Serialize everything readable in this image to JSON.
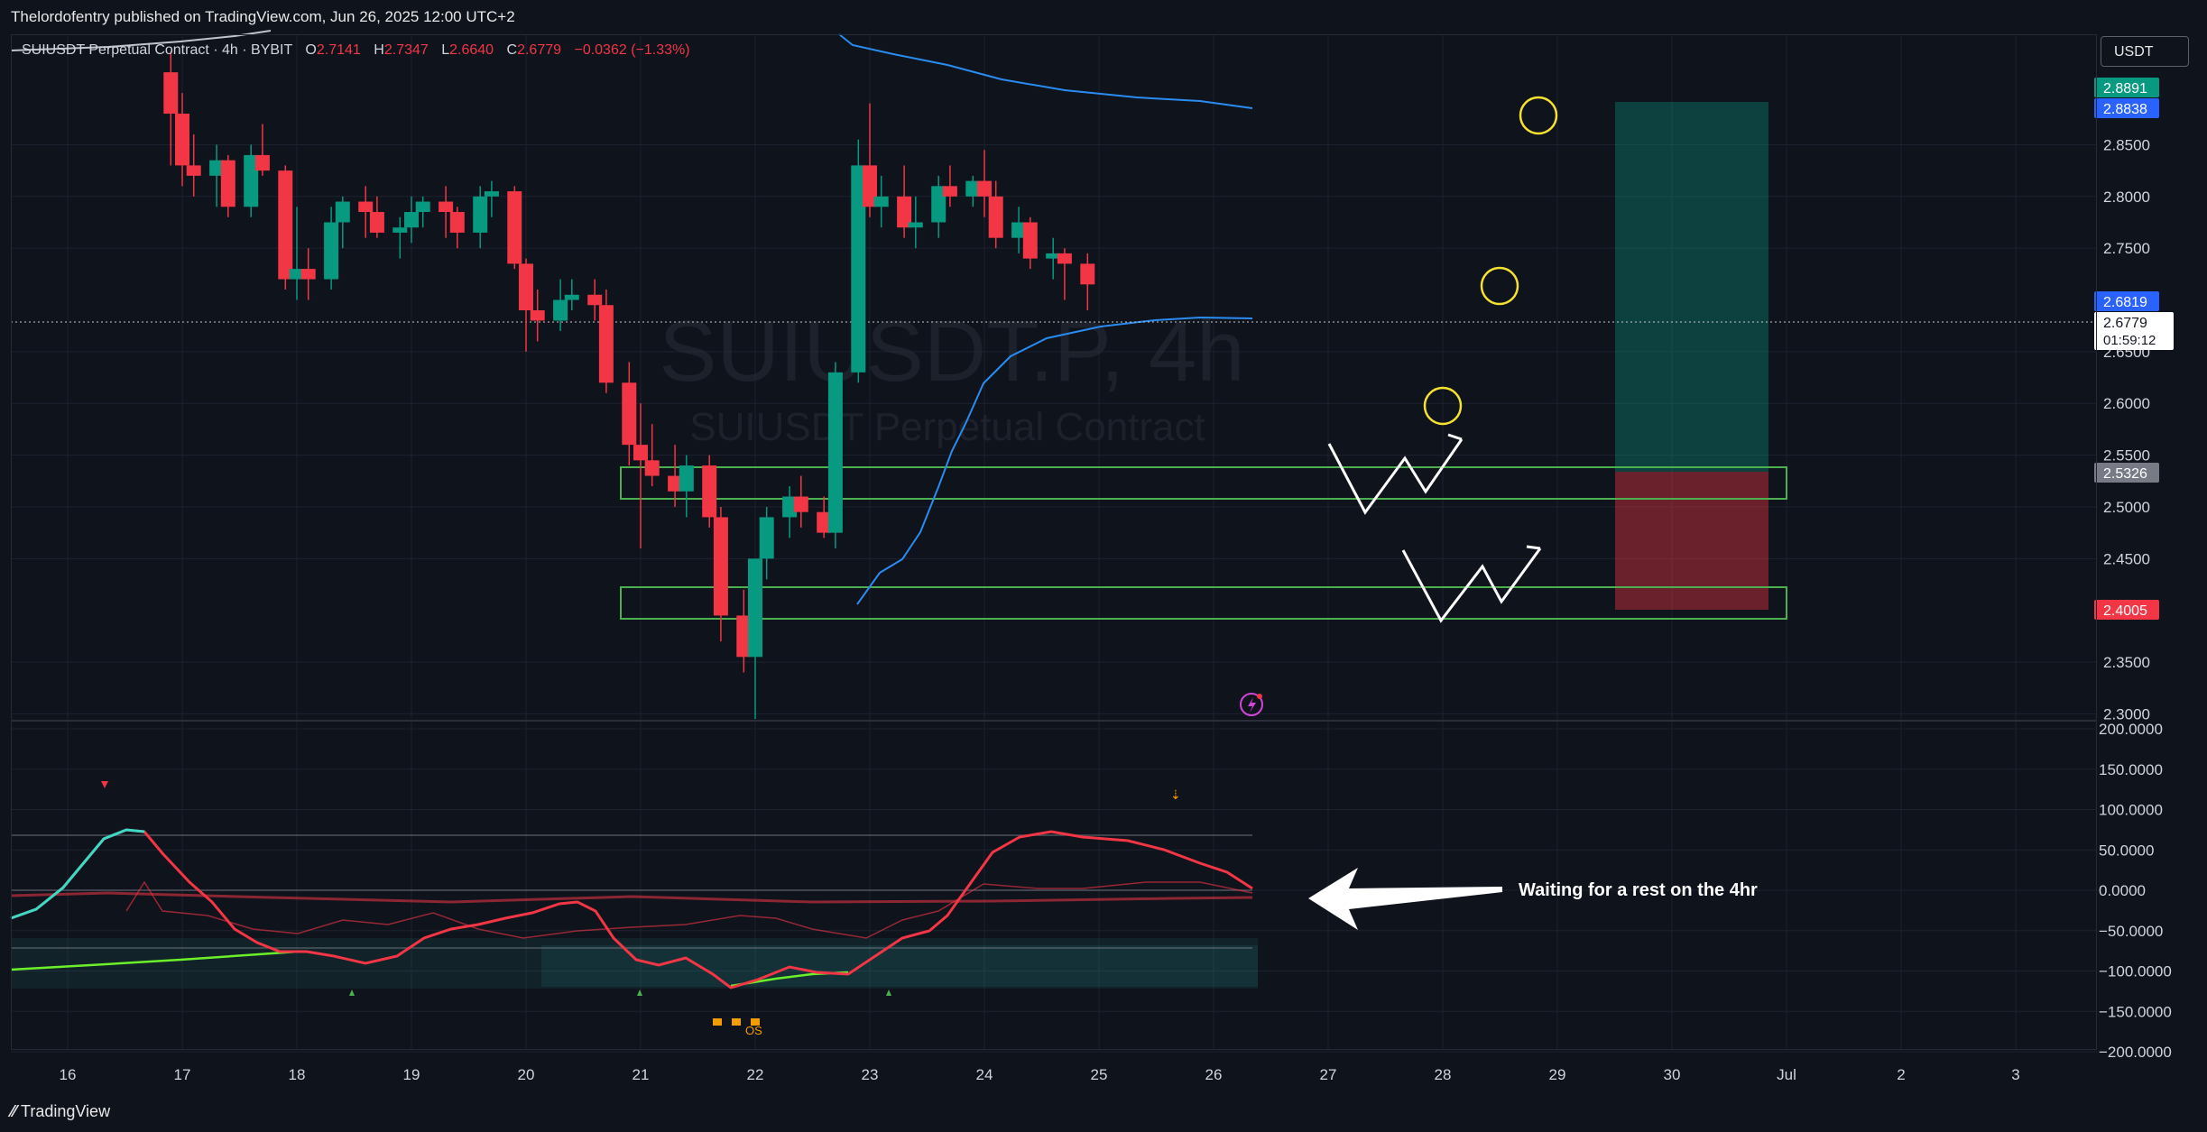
{
  "header": {
    "publisher_line": "Thelordofentry published on TradingView.com, Jun 26, 2025 12:00 UTC+2"
  },
  "legend": {
    "symbol": "SUIUSDT Perpetual Contract · 4h · BYBIT",
    "open_label": "O",
    "open": "2.7141",
    "high_label": "H",
    "high": "2.7347",
    "low_label": "L",
    "low": "2.6640",
    "close_label": "C",
    "close": "2.6779",
    "change": "−0.0362 (−1.33%)"
  },
  "watermark": {
    "main": "SUIUSDT.P, 4h",
    "sub": "SUIUSDT Perpetual Contract"
  },
  "currency_button": "USDT",
  "price_axis": {
    "ticks": [
      "2.8500",
      "2.8000",
      "2.7500",
      "2.6500",
      "2.6000",
      "2.5500",
      "2.5000",
      "2.4500",
      "2.3500",
      "2.3000"
    ],
    "labels": {
      "target": "2.8891",
      "ma_top": "2.8838",
      "ma_mid": "2.6819",
      "current_price": "2.6779",
      "countdown": "01:59:12",
      "entry": "2.5326",
      "stop": "2.4005"
    },
    "colors": {
      "target": "#089981",
      "ma": "#2962ff",
      "entry": "#787b86",
      "stop": "#f23645"
    }
  },
  "osc_axis": {
    "ticks": [
      "200.0000",
      "150.0000",
      "100.0000",
      "50.0000",
      "0.0000",
      "−50.0000",
      "−100.0000",
      "−150.0000",
      "−200.0000"
    ]
  },
  "time_axis": {
    "ticks": [
      "16",
      "17",
      "18",
      "19",
      "20",
      "21",
      "22",
      "23",
      "24",
      "25",
      "26",
      "27",
      "28",
      "29",
      "30",
      "Jul",
      "2",
      "3"
    ]
  },
  "annotation": {
    "note": "Waiting for a rest on the 4hr",
    "os_marker": "OS"
  },
  "footer": {
    "brand": "TradingView"
  },
  "chart_data": {
    "type": "candlestick",
    "symbol": "SUIUSDT.P",
    "interval": "4h",
    "ylim": [
      2.28,
      2.91
    ],
    "up_color": "#089981",
    "down_color": "#f23645",
    "candles": [
      {
        "t": "16.9",
        "o": 2.92,
        "h": 2.94,
        "l": 2.83,
        "c": 2.88
      },
      {
        "t": "17.0",
        "o": 2.88,
        "h": 2.9,
        "l": 2.81,
        "c": 2.83
      },
      {
        "t": "17.1",
        "o": 2.83,
        "h": 2.86,
        "l": 2.8,
        "c": 2.82
      },
      {
        "t": "17.3",
        "o": 2.82,
        "h": 2.85,
        "l": 2.79,
        "c": 2.835
      },
      {
        "t": "17.4",
        "o": 2.835,
        "h": 2.84,
        "l": 2.78,
        "c": 2.79
      },
      {
        "t": "17.6",
        "o": 2.79,
        "h": 2.85,
        "l": 2.78,
        "c": 2.84
      },
      {
        "t": "17.7",
        "o": 2.84,
        "h": 2.87,
        "l": 2.82,
        "c": 2.825
      },
      {
        "t": "17.9",
        "o": 2.825,
        "h": 2.83,
        "l": 2.71,
        "c": 2.72
      },
      {
        "t": "18.0",
        "o": 2.72,
        "h": 2.79,
        "l": 2.7,
        "c": 2.73
      },
      {
        "t": "18.1",
        "o": 2.73,
        "h": 2.75,
        "l": 2.7,
        "c": 2.72
      },
      {
        "t": "18.3",
        "o": 2.72,
        "h": 2.79,
        "l": 2.71,
        "c": 2.775
      },
      {
        "t": "18.4",
        "o": 2.775,
        "h": 2.8,
        "l": 2.75,
        "c": 2.795
      },
      {
        "t": "18.6",
        "o": 2.795,
        "h": 2.81,
        "l": 2.76,
        "c": 2.785
      },
      {
        "t": "18.7",
        "o": 2.785,
        "h": 2.8,
        "l": 2.76,
        "c": 2.765
      },
      {
        "t": "18.9",
        "o": 2.765,
        "h": 2.78,
        "l": 2.74,
        "c": 2.77
      },
      {
        "t": "19.0",
        "o": 2.77,
        "h": 2.8,
        "l": 2.755,
        "c": 2.785
      },
      {
        "t": "19.1",
        "o": 2.785,
        "h": 2.8,
        "l": 2.77,
        "c": 2.795
      },
      {
        "t": "19.3",
        "o": 2.795,
        "h": 2.81,
        "l": 2.76,
        "c": 2.785
      },
      {
        "t": "19.4",
        "o": 2.785,
        "h": 2.79,
        "l": 2.75,
        "c": 2.765
      },
      {
        "t": "19.6",
        "o": 2.765,
        "h": 2.81,
        "l": 2.75,
        "c": 2.8
      },
      {
        "t": "19.7",
        "o": 2.8,
        "h": 2.815,
        "l": 2.78,
        "c": 2.805
      },
      {
        "t": "19.9",
        "o": 2.805,
        "h": 2.81,
        "l": 2.73,
        "c": 2.735
      },
      {
        "t": "20.0",
        "o": 2.735,
        "h": 2.74,
        "l": 2.65,
        "c": 2.69
      },
      {
        "t": "20.1",
        "o": 2.69,
        "h": 2.71,
        "l": 2.66,
        "c": 2.68
      },
      {
        "t": "20.3",
        "o": 2.68,
        "h": 2.72,
        "l": 2.67,
        "c": 2.7
      },
      {
        "t": "20.4",
        "o": 2.7,
        "h": 2.72,
        "l": 2.69,
        "c": 2.705
      },
      {
        "t": "20.6",
        "o": 2.705,
        "h": 2.72,
        "l": 2.68,
        "c": 2.695
      },
      {
        "t": "20.7",
        "o": 2.695,
        "h": 2.71,
        "l": 2.61,
        "c": 2.62
      },
      {
        "t": "20.9",
        "o": 2.62,
        "h": 2.64,
        "l": 2.54,
        "c": 2.56
      },
      {
        "t": "21.0",
        "o": 2.56,
        "h": 2.6,
        "l": 2.46,
        "c": 2.545
      },
      {
        "t": "21.1",
        "o": 2.545,
        "h": 2.58,
        "l": 2.52,
        "c": 2.53
      },
      {
        "t": "21.3",
        "o": 2.53,
        "h": 2.56,
        "l": 2.5,
        "c": 2.515
      },
      {
        "t": "21.4",
        "o": 2.515,
        "h": 2.55,
        "l": 2.49,
        "c": 2.54
      },
      {
        "t": "21.6",
        "o": 2.54,
        "h": 2.55,
        "l": 2.48,
        "c": 2.49
      },
      {
        "t": "21.7",
        "o": 2.49,
        "h": 2.5,
        "l": 2.37,
        "c": 2.395
      },
      {
        "t": "21.9",
        "o": 2.395,
        "h": 2.42,
        "l": 2.34,
        "c": 2.355
      },
      {
        "t": "22.0",
        "o": 2.355,
        "h": 2.45,
        "l": 2.295,
        "c": 2.45
      },
      {
        "t": "22.1",
        "o": 2.45,
        "h": 2.5,
        "l": 2.43,
        "c": 2.49
      },
      {
        "t": "22.3",
        "o": 2.49,
        "h": 2.52,
        "l": 2.47,
        "c": 2.51
      },
      {
        "t": "22.4",
        "o": 2.51,
        "h": 2.53,
        "l": 2.48,
        "c": 2.495
      },
      {
        "t": "22.6",
        "o": 2.495,
        "h": 2.51,
        "l": 2.47,
        "c": 2.475
      },
      {
        "t": "22.7",
        "o": 2.475,
        "h": 2.64,
        "l": 2.46,
        "c": 2.63
      },
      {
        "t": "22.9",
        "o": 2.63,
        "h": 2.855,
        "l": 2.62,
        "c": 2.83
      },
      {
        "t": "23.0",
        "o": 2.83,
        "h": 2.89,
        "l": 2.78,
        "c": 2.79
      },
      {
        "t": "23.1",
        "o": 2.79,
        "h": 2.82,
        "l": 2.77,
        "c": 2.8
      },
      {
        "t": "23.3",
        "o": 2.8,
        "h": 2.83,
        "l": 2.76,
        "c": 2.77
      },
      {
        "t": "23.4",
        "o": 2.77,
        "h": 2.8,
        "l": 2.75,
        "c": 2.775
      },
      {
        "t": "23.6",
        "o": 2.775,
        "h": 2.82,
        "l": 2.76,
        "c": 2.81
      },
      {
        "t": "23.7",
        "o": 2.81,
        "h": 2.83,
        "l": 2.79,
        "c": 2.8
      },
      {
        "t": "23.9",
        "o": 2.8,
        "h": 2.82,
        "l": 2.79,
        "c": 2.815
      },
      {
        "t": "24.0",
        "o": 2.815,
        "h": 2.845,
        "l": 2.78,
        "c": 2.8
      },
      {
        "t": "24.1",
        "o": 2.8,
        "h": 2.815,
        "l": 2.75,
        "c": 2.76
      },
      {
        "t": "24.3",
        "o": 2.76,
        "h": 2.79,
        "l": 2.745,
        "c": 2.775
      },
      {
        "t": "24.4",
        "o": 2.775,
        "h": 2.78,
        "l": 2.73,
        "c": 2.74
      },
      {
        "t": "24.6",
        "o": 2.74,
        "h": 2.76,
        "l": 2.72,
        "c": 2.745
      },
      {
        "t": "24.7",
        "o": 2.745,
        "h": 2.75,
        "l": 2.7,
        "c": 2.735
      },
      {
        "t": "24.9",
        "o": 2.735,
        "h": 2.745,
        "l": 2.69,
        "c": 2.715
      }
    ],
    "zones": [
      {
        "name": "upper-support",
        "low": 2.507,
        "high": 2.538
      },
      {
        "name": "lower-support",
        "low": 2.395,
        "high": 2.425
      }
    ],
    "long_position": {
      "entry": 2.5326,
      "target": 2.8891,
      "stop": 2.4005
    }
  }
}
